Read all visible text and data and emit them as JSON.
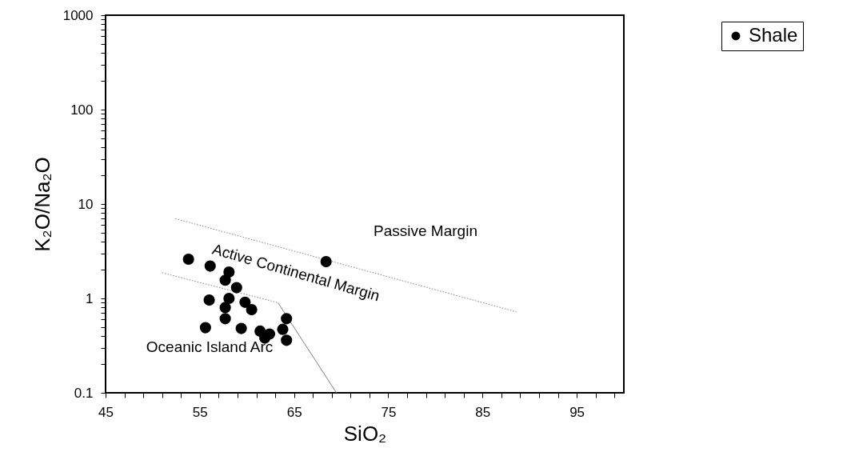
{
  "chart_data": {
    "type": "scatter",
    "xlabel": "SiO₂",
    "ylabel": "K₂O/Na₂O",
    "log": "y",
    "legend": "top right",
    "xlim": [
      45,
      100
    ],
    "ylim": [
      0.1,
      1000
    ],
    "xticks": [
      45,
      {
        "value": 47,
        "label": null
      },
      {
        "value": 49,
        "label": null
      },
      {
        "value": 51,
        "label": null
      },
      {
        "value": 53,
        "label": null
      },
      55,
      {
        "value": 57,
        "label": null
      },
      {
        "value": 59,
        "label": null
      },
      {
        "value": 61,
        "label": null
      },
      {
        "value": 63,
        "label": null
      },
      65,
      {
        "value": 67,
        "label": null
      },
      {
        "value": 69,
        "label": null
      },
      {
        "value": 71,
        "label": null
      },
      {
        "value": 73,
        "label": null
      },
      75,
      {
        "value": 77,
        "label": null
      },
      {
        "value": 79,
        "label": null
      },
      {
        "value": 81,
        "label": null
      },
      {
        "value": 83,
        "label": null
      },
      85,
      {
        "value": 87,
        "label": null
      },
      {
        "value": 89,
        "label": null
      },
      {
        "value": 91,
        "label": null
      },
      {
        "value": 93,
        "label": null
      },
      95,
      {
        "value": 97,
        "label": null
      },
      {
        "value": 99,
        "label": null
      }
    ],
    "yticks": [
      0.1,
      {
        "value": 0.2,
        "label": null
      },
      {
        "value": 0.3,
        "label": null
      },
      {
        "value": 0.4,
        "label": null
      },
      {
        "value": 0.5,
        "label": null
      },
      {
        "value": 0.6,
        "label": null
      },
      {
        "value": 0.7,
        "label": null
      },
      {
        "value": 0.8,
        "label": null
      },
      {
        "value": 0.9,
        "label": null
      },
      1,
      {
        "value": 2,
        "label": null
      },
      {
        "value": 3,
        "label": null
      },
      {
        "value": 4,
        "label": null
      },
      {
        "value": 5,
        "label": null
      },
      {
        "value": 6,
        "label": null
      },
      {
        "value": 7,
        "label": null
      },
      {
        "value": 8,
        "label": null
      },
      {
        "value": 9,
        "label": null
      },
      10,
      {
        "value": 20,
        "label": null
      },
      {
        "value": 30,
        "label": null
      },
      {
        "value": 40,
        "label": null
      },
      {
        "value": 50,
        "label": null
      },
      {
        "value": 60,
        "label": null
      },
      {
        "value": 70,
        "label": null
      },
      {
        "value": 80,
        "label": null
      },
      {
        "value": 90,
        "label": null
      },
      100,
      {
        "value": 200,
        "label": null
      },
      {
        "value": 300,
        "label": null
      },
      {
        "value": 400,
        "label": null
      },
      {
        "value": 500,
        "label": null
      },
      {
        "value": 600,
        "label": null
      },
      {
        "value": 700,
        "label": null
      },
      {
        "value": 800,
        "label": null
      },
      {
        "value": 900,
        "label": null
      },
      1000
    ],
    "series": [
      {
        "name": "Shale",
        "marker": "circle",
        "color": "#000000",
        "x": [
          53.8,
          56.1,
          58.1,
          57.7,
          58.9,
          56.0,
          58.1,
          59.8,
          60.5,
          57.7,
          57.7,
          55.6,
          59.4,
          61.4,
          62.4,
          61.9,
          64.2,
          63.8,
          64.2,
          68.4
        ],
        "values": [
          2.6,
          2.2,
          1.9,
          1.56,
          1.3,
          0.96,
          1.0,
          0.91,
          0.76,
          0.8,
          0.61,
          0.49,
          0.48,
          0.45,
          0.42,
          0.38,
          0.61,
          0.47,
          0.36,
          2.45
        ]
      },
      {
        "type": "line",
        "color": "#808080",
        "line_style": "dotted",
        "x": [
          52.4,
          88.6
        ],
        "values": [
          7.0,
          0.72
        ]
      },
      {
        "type": "line",
        "color": "#808080",
        "line_style": "dotted",
        "x": [
          51,
          63.3
        ],
        "values": [
          1.87,
          0.9
        ]
      },
      {
        "type": "line",
        "color": "#808080",
        "line_style": "solid",
        "x": [
          63.3,
          69.5
        ],
        "values": [
          0.9,
          0.1
        ]
      }
    ],
    "annotations": [
      "Passive Margin",
      "Active Continental Margin",
      "Oceanic Island Arc"
    ]
  }
}
